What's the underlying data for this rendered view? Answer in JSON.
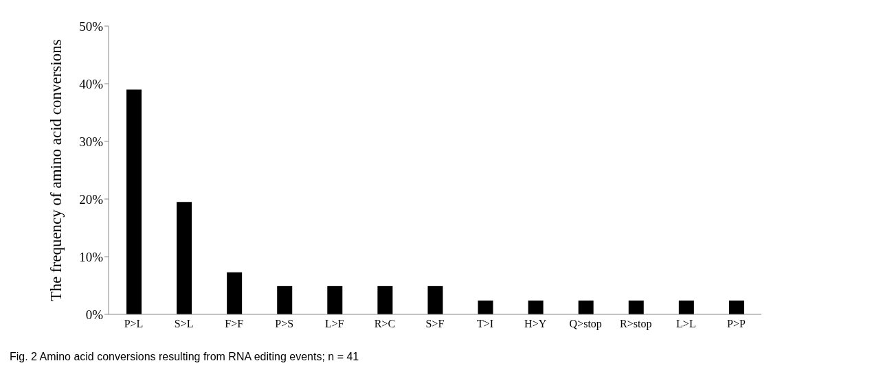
{
  "chart_data": {
    "type": "bar",
    "ylabel": "The frequency of amino acid conversions",
    "categories": [
      "P>L",
      "S>L",
      "F>F",
      "P>S",
      "L>F",
      "R>C",
      "S>F",
      "T>I",
      "H>Y",
      "Q>stop",
      "R>stop",
      "L>L",
      "P>P"
    ],
    "values": [
      39.0,
      19.5,
      7.3,
      4.9,
      4.9,
      4.9,
      4.9,
      2.4,
      2.4,
      2.4,
      2.4,
      2.4,
      2.4
    ],
    "color": "#000000",
    "ylim": [
      0,
      50
    ],
    "yticks": [
      {
        "value": 0,
        "label": "0%"
      },
      {
        "value": 10,
        "label": "10%"
      },
      {
        "value": 20,
        "label": "20%"
      },
      {
        "value": 30,
        "label": "30%"
      },
      {
        "value": 40,
        "label": "40%"
      },
      {
        "value": 50,
        "label": "50%"
      }
    ],
    "grid": false,
    "annotations": [
      "Fig. 2  Amino acid conversions resulting from RNA editing events; n = 41"
    ]
  }
}
